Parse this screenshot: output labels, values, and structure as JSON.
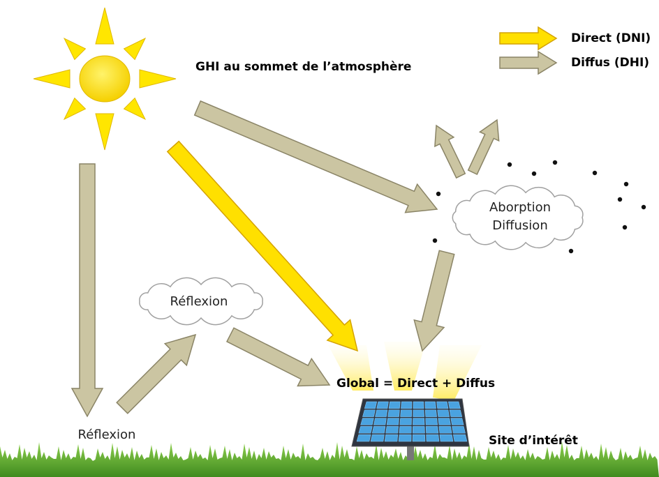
{
  "legend": {
    "items": [
      {
        "label": "Direct (DNI)"
      },
      {
        "label": "Diffus (DHI)"
      }
    ]
  },
  "labels": {
    "top_of_atmosphere": "GHI au sommet de l’atmosphère",
    "atmosphere_cloud": [
      "Aborption",
      "Diffusion"
    ],
    "cloud_reflection": "Réflexion",
    "ground_reflection": "Réflexion",
    "global": "Global = Direct + Diffus",
    "site": "Site d’intérêt"
  }
}
